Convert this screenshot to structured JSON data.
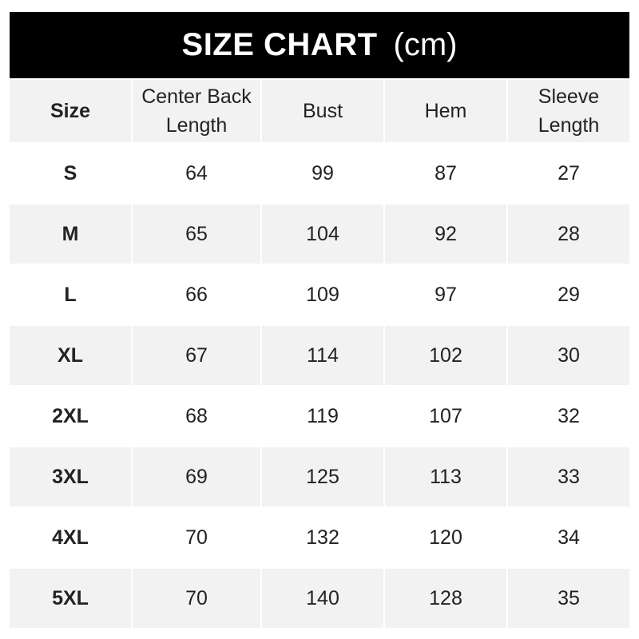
{
  "title": {
    "main": "SIZE CHART",
    "unit": "(cm)"
  },
  "colors": {
    "header_bg": "#000000",
    "row_gray": "#f2f2f2",
    "row_white": "#ffffff"
  },
  "columns": [
    "Size",
    "Center Back\nLength",
    "Bust",
    "Hem",
    "Sleeve\nLength"
  ],
  "rows": [
    [
      "S",
      "64",
      "99",
      "87",
      "27"
    ],
    [
      "M",
      "65",
      "104",
      "92",
      "28"
    ],
    [
      "L",
      "66",
      "109",
      "97",
      "29"
    ],
    [
      "XL",
      "67",
      "114",
      "102",
      "30"
    ],
    [
      "2XL",
      "68",
      "119",
      "107",
      "32"
    ],
    [
      "3XL",
      "69",
      "125",
      "113",
      "33"
    ],
    [
      "4XL",
      "70",
      "132",
      "120",
      "34"
    ],
    [
      "5XL",
      "70",
      "140",
      "128",
      "35"
    ]
  ]
}
